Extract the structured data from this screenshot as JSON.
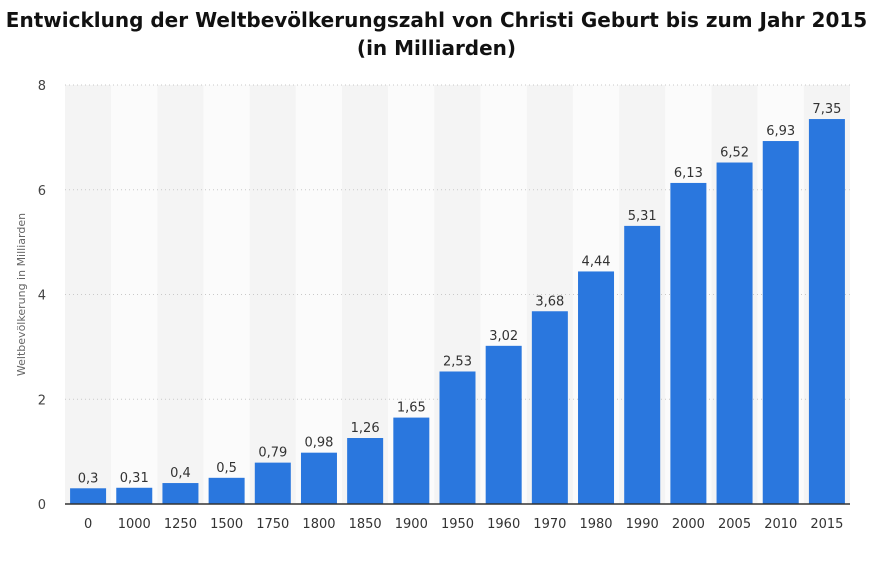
{
  "chart_data": {
    "type": "bar",
    "title": "Entwicklung der Weltbevölkerungszahl von Christi Geburt bis zum Jahr 2015",
    "subtitle": "(in Milliarden)",
    "xlabel": "",
    "ylabel": "Weltbevölkerung in Milliarden",
    "categories": [
      "0",
      "1000",
      "1250",
      "1500",
      "1750",
      "1800",
      "1850",
      "1900",
      "1950",
      "1960",
      "1970",
      "1980",
      "1990",
      "2000",
      "2005",
      "2010",
      "2015"
    ],
    "values": [
      0.3,
      0.31,
      0.4,
      0.5,
      0.79,
      0.98,
      1.26,
      1.65,
      2.53,
      3.02,
      3.68,
      4.44,
      5.31,
      6.13,
      6.52,
      6.93,
      7.35
    ],
    "value_labels": [
      "0,3",
      "0,31",
      "0,4",
      "0,5",
      "0,79",
      "0,98",
      "1,26",
      "1,65",
      "2,53",
      "3,02",
      "3,68",
      "4,44",
      "5,31",
      "6,13",
      "6,52",
      "6,93",
      "7,35"
    ],
    "ylim": [
      0,
      8
    ],
    "yticks": [
      0,
      2,
      4,
      6,
      8
    ],
    "ytick_labels": [
      "0",
      "2",
      "4",
      "6",
      "8"
    ],
    "grid": true,
    "legend": "none",
    "bar_color": "#2a77de"
  }
}
